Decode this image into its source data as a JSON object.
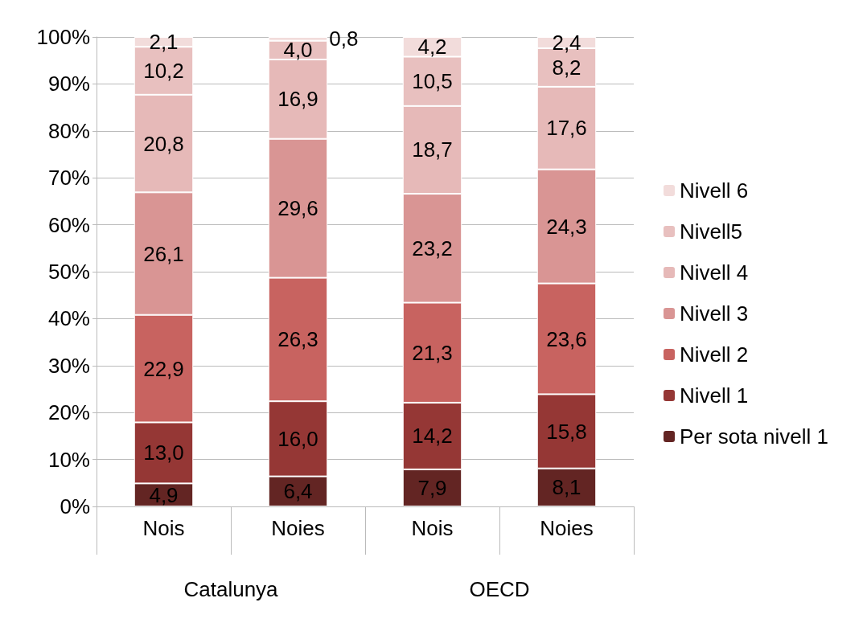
{
  "chart_data": {
    "type": "bar",
    "stacked": true,
    "categories": [
      "Nois",
      "Noies",
      "Nois",
      "Noies"
    ],
    "annotations": [
      "Catalunya",
      "OECD"
    ],
    "series": [
      {
        "name": "Per sota nivell 1",
        "color": "#632523",
        "values": [
          4.9,
          6.4,
          7.9,
          8.1
        ],
        "value_labels": [
          "4,9",
          "6,4",
          "7,9",
          "8,1"
        ]
      },
      {
        "name": "Nivell 1",
        "color": "#953735",
        "values": [
          13.0,
          16.0,
          14.2,
          15.8
        ],
        "value_labels": [
          "13,0",
          "16,0",
          "14,2",
          "15,8"
        ]
      },
      {
        "name": "Nivell 2",
        "color": "#c86360",
        "values": [
          22.9,
          26.3,
          21.3,
          23.6
        ],
        "value_labels": [
          "22,9",
          "26,3",
          "21,3",
          "23,6"
        ]
      },
      {
        "name": "Nivell 3",
        "color": "#d99594",
        "values": [
          26.1,
          29.6,
          23.2,
          24.3
        ],
        "value_labels": [
          "26,1",
          "29,6",
          "23,2",
          "24,3"
        ]
      },
      {
        "name": "Nivell 4",
        "color": "#e6b9b8",
        "values": [
          20.8,
          16.9,
          18.7,
          17.6
        ],
        "value_labels": [
          "20,8",
          "16,9",
          "18,7",
          "17,6"
        ]
      },
      {
        "name": "Nivell5",
        "color": "#e8c0bf",
        "values": [
          10.2,
          4.0,
          10.5,
          8.2
        ],
        "value_labels": [
          "10,2",
          "4,0",
          "10,5",
          "8,2"
        ]
      },
      {
        "name": "Nivell 6",
        "color": "#f2dcdb",
        "values": [
          2.1,
          0.8,
          4.2,
          2.4
        ],
        "value_labels": [
          "2,1",
          "0,8",
          "4,2",
          "2,4"
        ]
      }
    ],
    "ylim": [
      0,
      100
    ],
    "yticks": [
      {
        "value": 0,
        "label": "0%"
      },
      {
        "value": 10,
        "label": "10%"
      },
      {
        "value": 20,
        "label": "20%"
      },
      {
        "value": 30,
        "label": "30%"
      },
      {
        "value": 40,
        "label": "40%"
      },
      {
        "value": 50,
        "label": "50%"
      },
      {
        "value": 60,
        "label": "60%"
      },
      {
        "value": 70,
        "label": "70%"
      },
      {
        "value": 80,
        "label": "80%"
      },
      {
        "value": 90,
        "label": "90%"
      },
      {
        "value": 100,
        "label": "100%"
      }
    ],
    "grid": "y",
    "legend": "right"
  }
}
